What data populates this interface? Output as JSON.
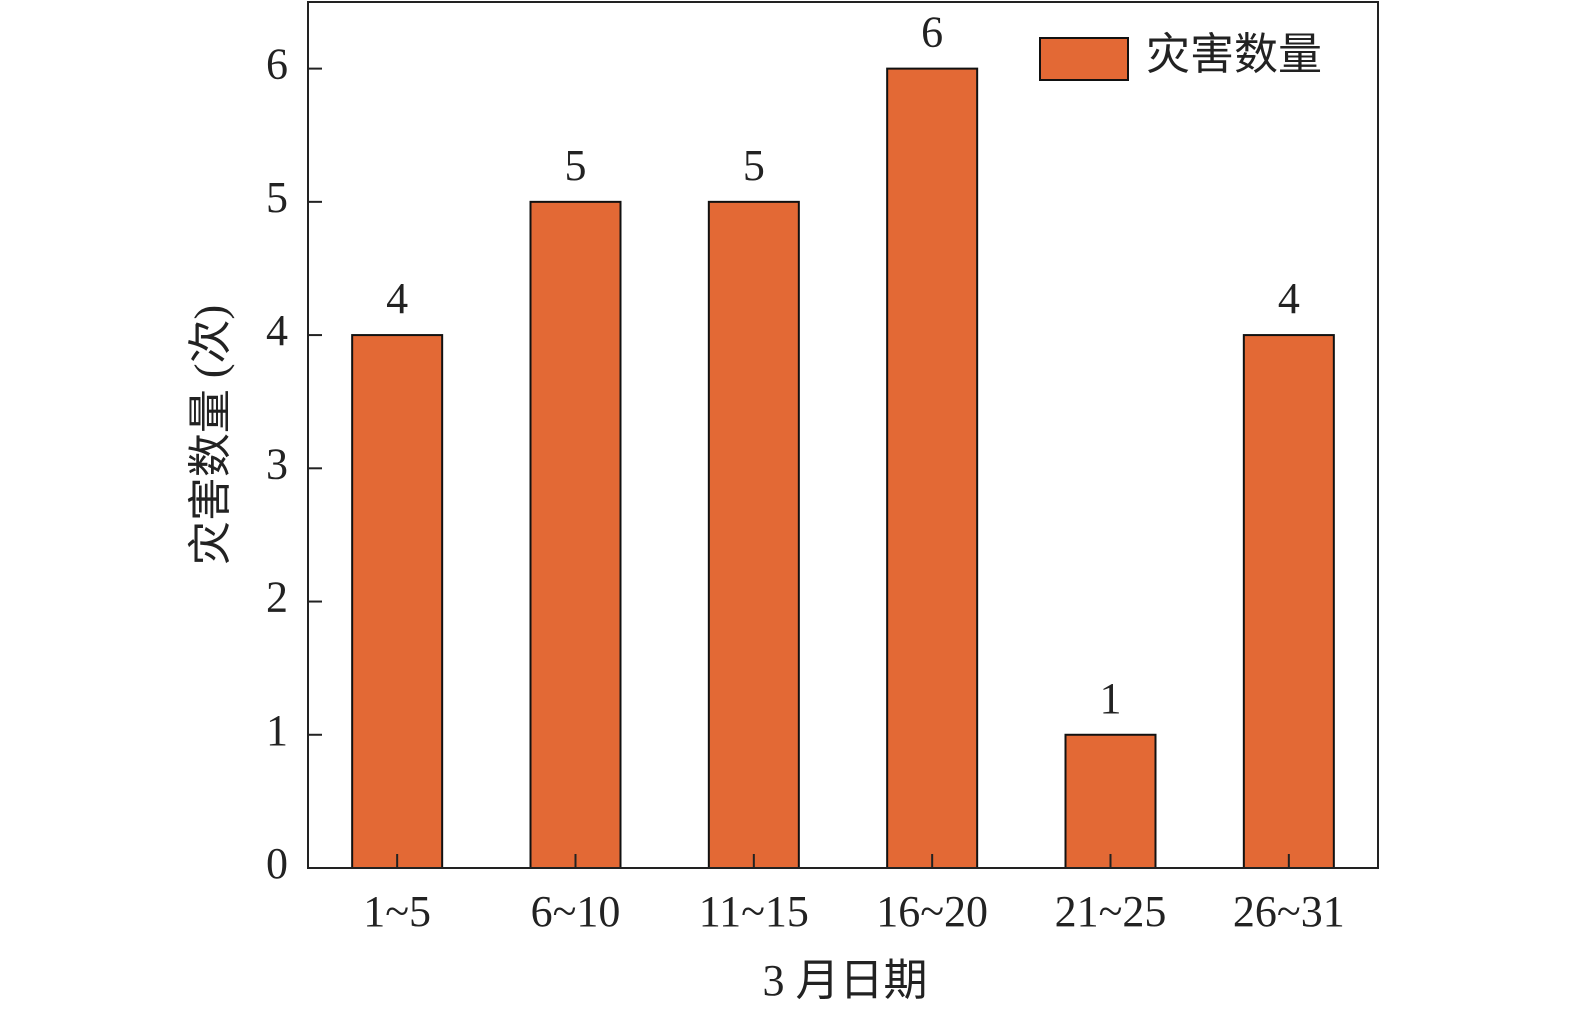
{
  "chart_data": {
    "type": "bar",
    "x_label": "3 月日期",
    "y_label": "灾害数量 (次)",
    "categories": [
      "1~5",
      "6~10",
      "11~15",
      "16~20",
      "21~25",
      "26~31"
    ],
    "series": [
      {
        "name": "灾害数量",
        "color": "#e36935",
        "values": [
          4,
          5,
          5,
          6,
          1,
          4
        ]
      }
    ],
    "ylim": [
      0,
      6.5
    ],
    "yticks": [
      0,
      1,
      2,
      3,
      4,
      5,
      6
    ],
    "legend": "upper right",
    "data_labels": true
  }
}
